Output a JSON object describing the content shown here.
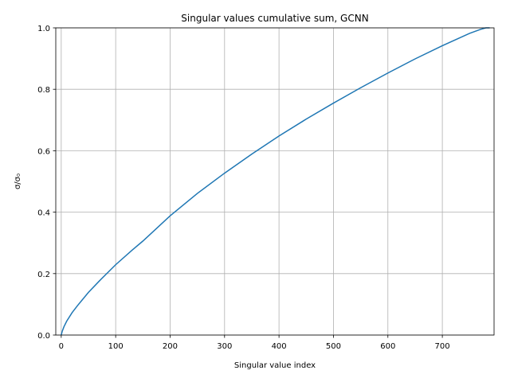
{
  "chart_data": {
    "type": "line",
    "title": "Singular values cumulative sum, GCNN",
    "xlabel": "Singular value index",
    "ylabel": "σ/σ₀",
    "xlim": [
      -10,
      795
    ],
    "ylim": [
      0.0,
      1.0
    ],
    "xticks": [
      0,
      100,
      200,
      300,
      400,
      500,
      600,
      700
    ],
    "yticks": [
      0.0,
      0.2,
      0.4,
      0.6,
      0.8,
      1.0
    ],
    "ytick_labels": [
      "0.0",
      "0.2",
      "0.4",
      "0.6",
      "0.8",
      "1.0"
    ],
    "grid": true,
    "series": [
      {
        "color": "#1f77b4",
        "x": [
          0,
          2,
          5,
          10,
          20,
          30,
          50,
          70,
          100,
          130,
          150,
          200,
          250,
          300,
          350,
          400,
          450,
          500,
          550,
          600,
          650,
          700,
          750,
          770,
          780,
          787
        ],
        "y": [
          0.0,
          0.013,
          0.027,
          0.045,
          0.073,
          0.096,
          0.139,
          0.176,
          0.229,
          0.276,
          0.306,
          0.388,
          0.461,
          0.527,
          0.589,
          0.648,
          0.703,
          0.755,
          0.805,
          0.853,
          0.899,
          0.942,
          0.982,
          0.995,
          1.0,
          1.0
        ]
      }
    ]
  }
}
